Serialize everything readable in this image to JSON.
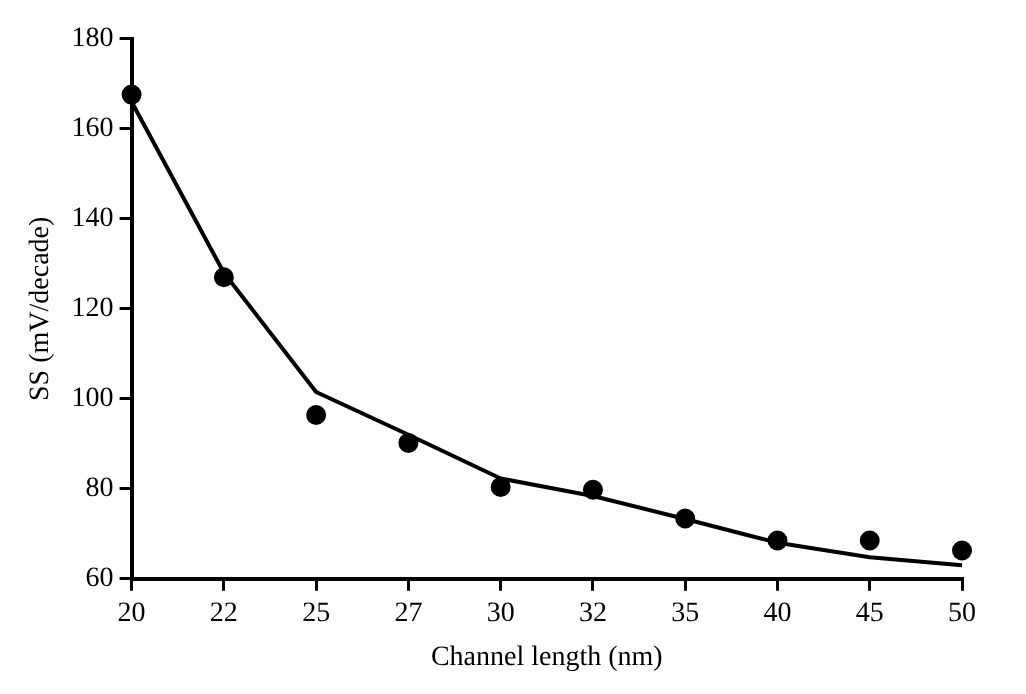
{
  "chart_data": {
    "type": "line",
    "xlabel": "Channel length (nm)",
    "ylabel": "SS (mV/decade)",
    "categories": [
      "20",
      "22",
      "25",
      "27",
      "30",
      "32",
      "35",
      "40",
      "45",
      "50"
    ],
    "series": [
      {
        "color": "#000000",
        "marker": "none",
        "line_style": "solid",
        "values": [
          166,
          128,
          101.5,
          92,
          82.3,
          78.4,
          73.3,
          68,
          64.8,
          63
        ]
      },
      {
        "type": "scatter",
        "color": "#000000",
        "marker": "circle",
        "values": [
          167.6,
          127,
          96.4,
          90.2,
          80.4,
          79.8,
          73.4,
          68.5,
          68.5,
          66.3
        ]
      }
    ],
    "ylim": [
      60,
      180
    ],
    "yticks": [
      60,
      80,
      100,
      120,
      140,
      160,
      180
    ],
    "grid": false,
    "legend": false
  }
}
